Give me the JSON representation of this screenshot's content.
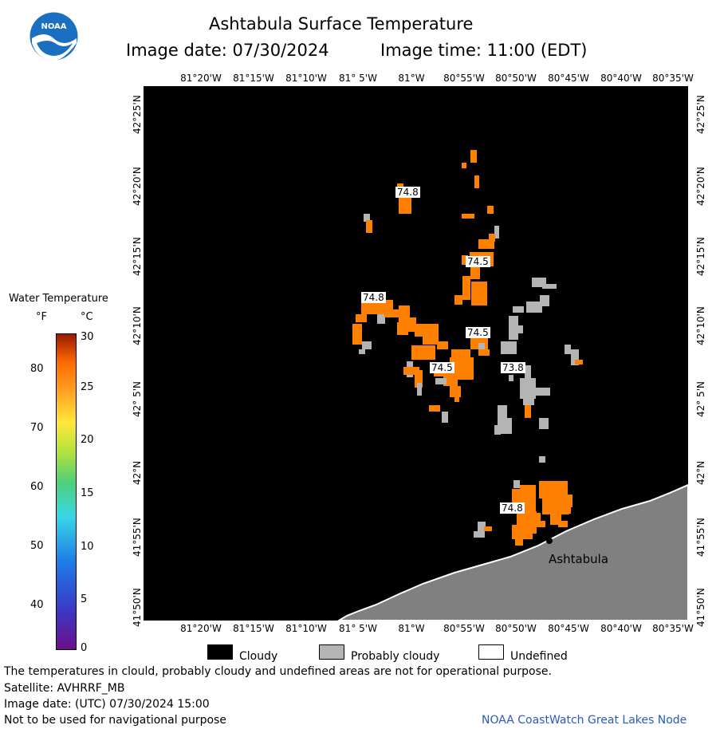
{
  "header": {
    "title": "Ashtabula Surface Temperature",
    "date_text": "Image date: 07/30/2024",
    "time_text": "Image time: 11:00 (EDT)"
  },
  "logo": {
    "text": "NOAA"
  },
  "longitude_labels": [
    "81°20'W",
    "81°15'W",
    "81°10'W",
    "81° 5'W",
    "81°W",
    "80°55'W",
    "80°50'W",
    "80°45'W",
    "80°40'W",
    "80°35'W"
  ],
  "latitude_labels": [
    "42°25'N",
    "42°20'N",
    "42°15'N",
    "42°10'N",
    "42° 5'N",
    "42°N",
    "41°55'N",
    "41°50'N"
  ],
  "map": {
    "place_label": "Ashtabula",
    "temperature_labels": [
      "74.8",
      "74.5",
      "74.8",
      "74.5",
      "74.5",
      "73.8",
      "74.8"
    ]
  },
  "colorbar": {
    "title": "Water Temperature",
    "unit_f": "°F",
    "unit_c": "°C",
    "f_ticks": [
      "80",
      "70",
      "60",
      "50",
      "40"
    ],
    "c_ticks": [
      "30",
      "25",
      "20",
      "15",
      "10",
      "5",
      "0"
    ]
  },
  "legend": {
    "cloudy": "Cloudy",
    "probably_cloudy": "Probably cloudy",
    "undefined": "Undefined"
  },
  "colors": {
    "cloudy": "#000000",
    "probably_cloudy": "#b4b4b4",
    "undefined": "#ffffff",
    "land": "#808080",
    "water_warm": "#ff8000"
  },
  "footer": {
    "note": "The temperatures in clould, probably cloudy and undefined areas are not for operational purpose.",
    "satellite": "Satellite: AVHRRF_MB",
    "utc_date": "Image date: (UTC) 07/30/2024  15:00",
    "warning": "Not to be used for navigational purpose",
    "credit": "NOAA CoastWatch Great Lakes Node"
  }
}
